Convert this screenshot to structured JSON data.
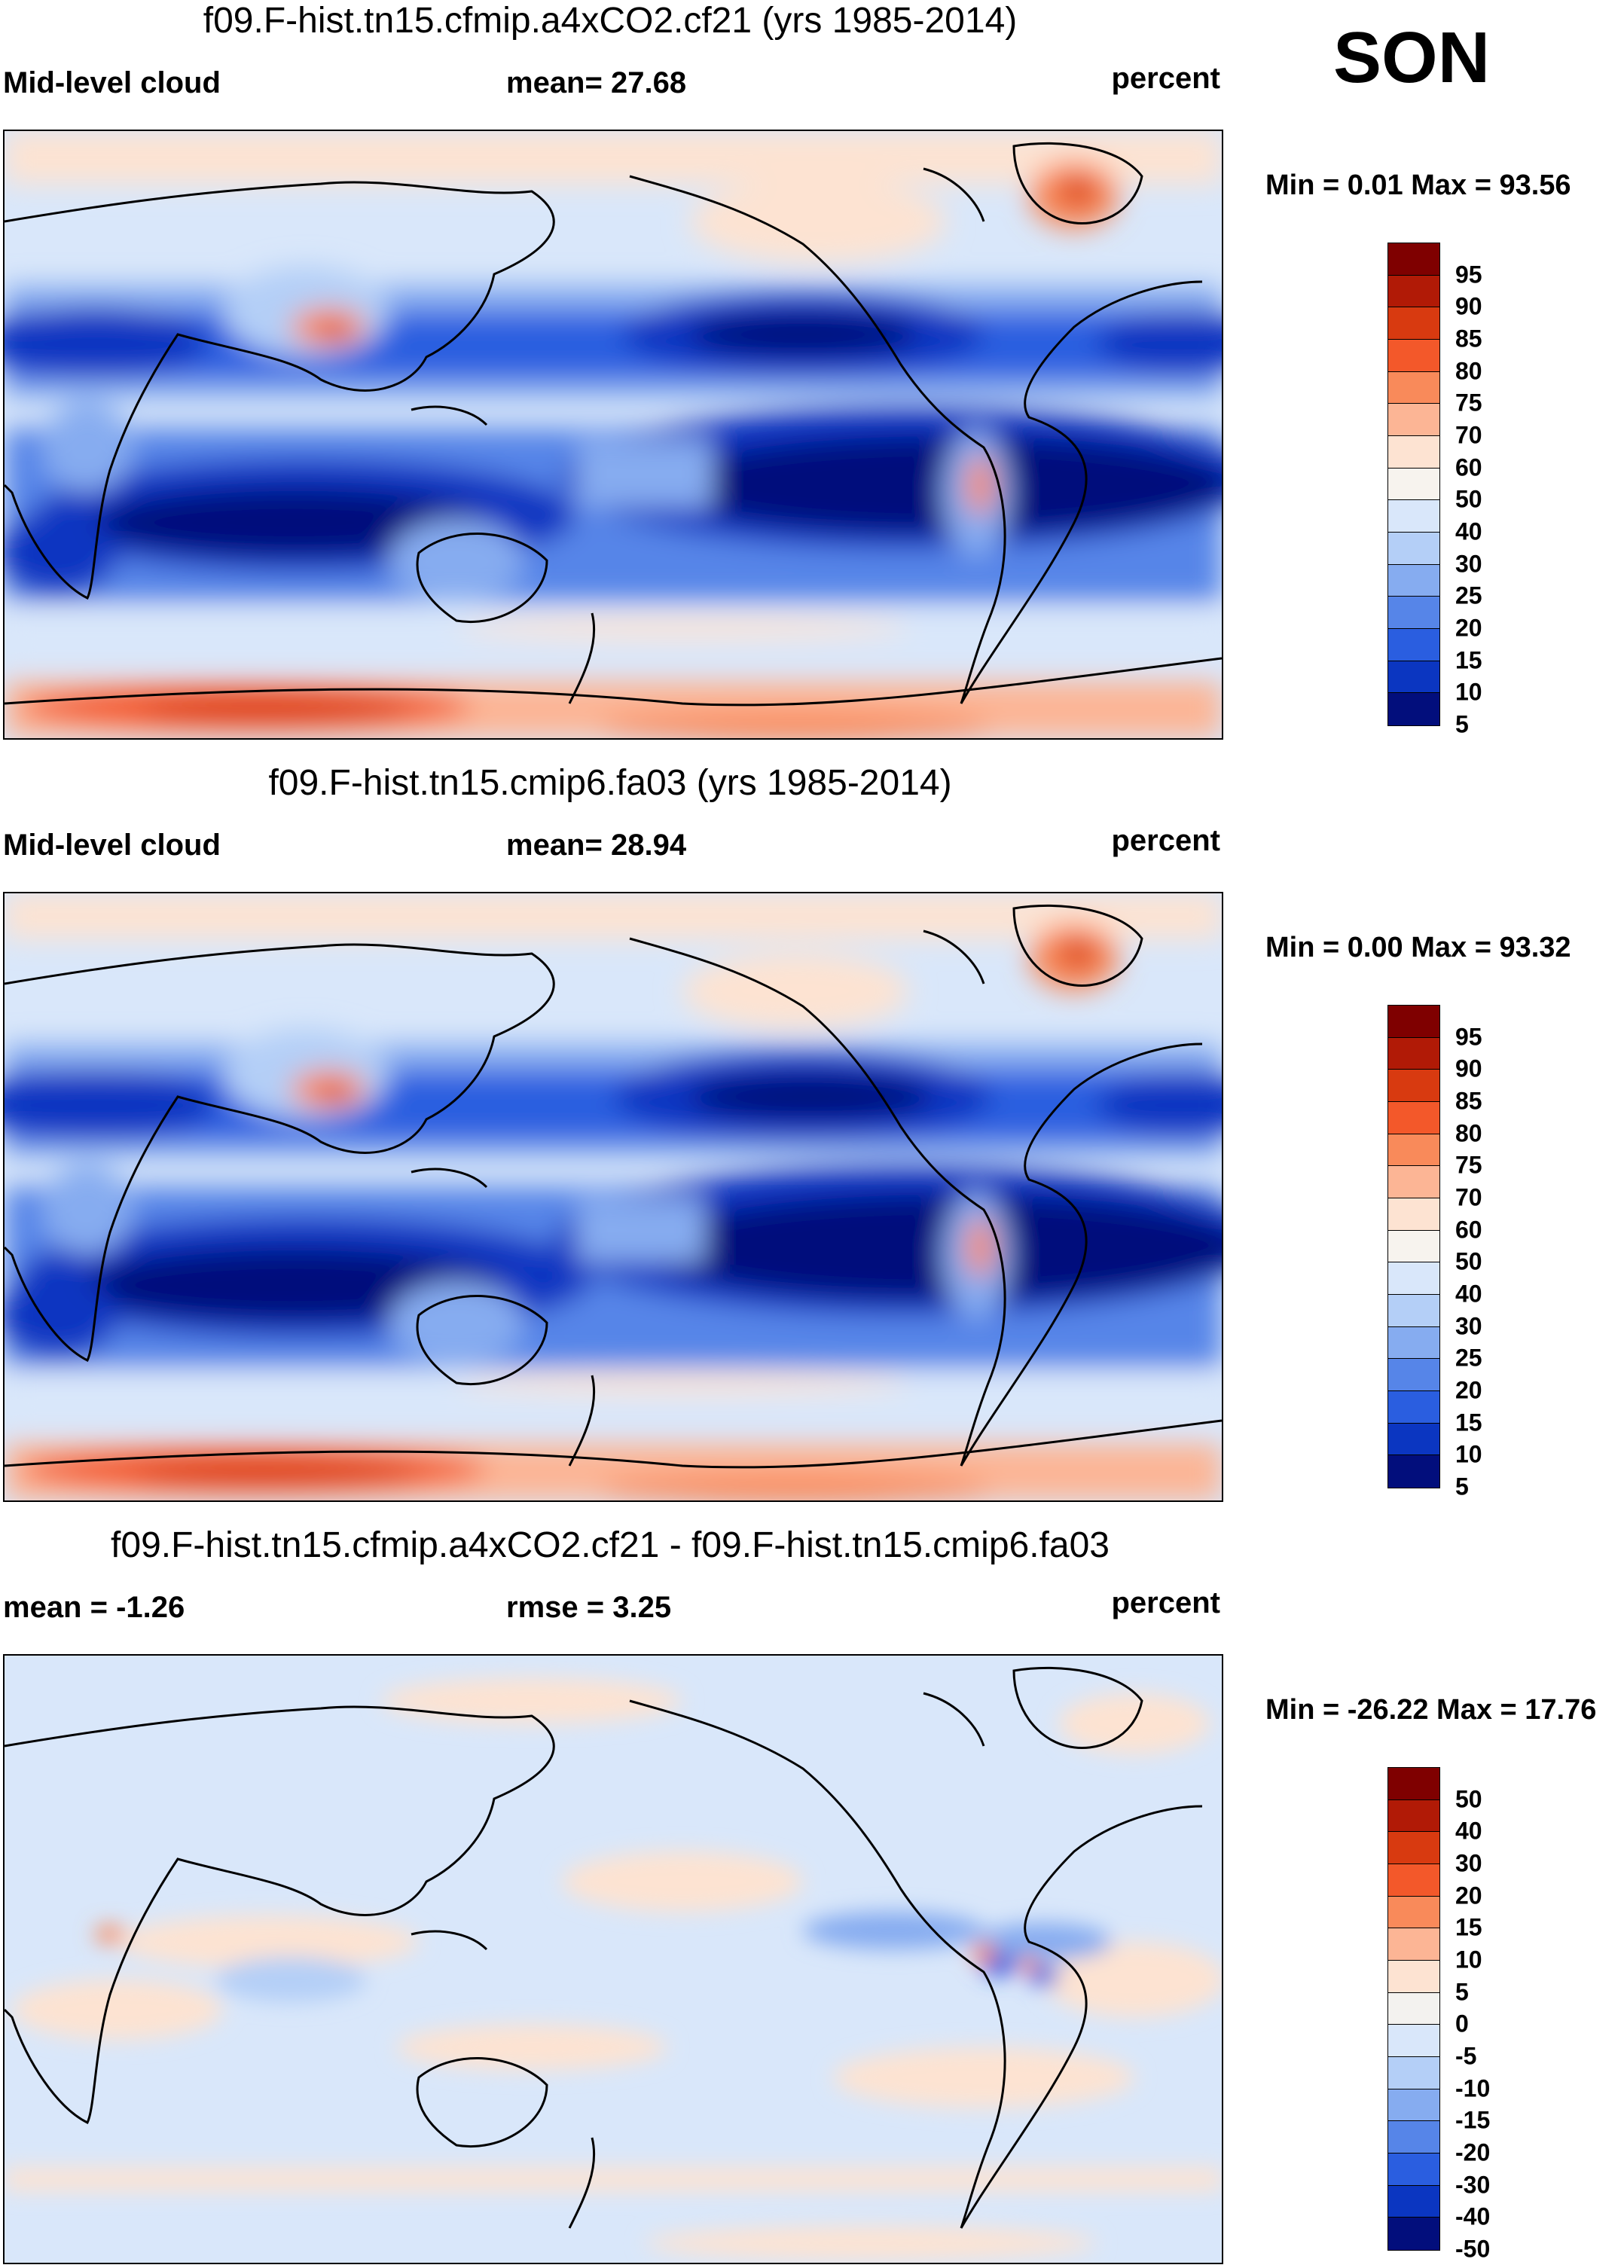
{
  "season": "SON",
  "units": "percent",
  "panels": [
    {
      "title": "f09.F-hist.tn15.cfmip.a4xCO2.cf21 (yrs 1985-2014)",
      "left_label": "Mid-level cloud",
      "mid_label": "mean=  27.68",
      "right_label": "percent",
      "minmax": "Min =   0.01 Max =  93.56",
      "colorbar_labels": [
        "95",
        "90",
        "85",
        "80",
        "75",
        "70",
        "60",
        "50",
        "40",
        "30",
        "25",
        "20",
        "15",
        "10",
        "5"
      ]
    },
    {
      "title": "f09.F-hist.tn15.cmip6.fa03 (yrs 1985-2014)",
      "left_label": "Mid-level cloud",
      "mid_label": "mean=  28.94",
      "right_label": "percent",
      "minmax": "Min =   0.00 Max =  93.32",
      "colorbar_labels": [
        "95",
        "90",
        "85",
        "80",
        "75",
        "70",
        "60",
        "50",
        "40",
        "30",
        "25",
        "20",
        "15",
        "10",
        "5"
      ]
    },
    {
      "title": "f09.F-hist.tn15.cfmip.a4xCO2.cf21 - f09.F-hist.tn15.cmip6.fa03",
      "left_label": "mean =  -1.26",
      "mid_label": "rmse =   3.25",
      "right_label": "percent",
      "minmax": "Min = -26.22 Max =  17.76",
      "colorbar_labels": [
        "50",
        "40",
        "30",
        "20",
        "15",
        "10",
        "5",
        "0",
        "-5",
        "-10",
        "-15",
        "-20",
        "-30",
        "-40",
        "-50"
      ]
    }
  ],
  "colors": {
    "abs_scale": [
      "#7f0000",
      "#b11a06",
      "#d83a10",
      "#f3582a",
      "#f98a5a",
      "#fcb595",
      "#fde3d2",
      "#f7f3ee",
      "#d9e7fa",
      "#b4cff7",
      "#86acf0",
      "#5685e8",
      "#2a5ee0",
      "#0b36c1",
      "#020e7c"
    ],
    "diff_scale": [
      "#7f0000",
      "#b11a06",
      "#d83a10",
      "#f3582a",
      "#f98a5a",
      "#fcb595",
      "#fde3d2",
      "#f3f2ef",
      "#d9e7fa",
      "#b4cff7",
      "#86acf0",
      "#5685e8",
      "#2a5ee0",
      "#0b36c1",
      "#020e7c"
    ],
    "land_outline": "#000000"
  },
  "chart_data": [
    {
      "type": "heatmap",
      "title": "f09.F-hist.tn15.cfmip.a4xCO2.cf21 (yrs 1985-2014)",
      "variable": "Mid-level cloud",
      "season": "SON",
      "units": "percent",
      "mean": 27.68,
      "min": 0.01,
      "max": 93.56,
      "contour_levels": [
        5,
        10,
        15,
        20,
        25,
        30,
        40,
        50,
        60,
        70,
        75,
        80,
        85,
        90,
        95
      ]
    },
    {
      "type": "heatmap",
      "title": "f09.F-hist.tn15.cmip6.fa03 (yrs 1985-2014)",
      "variable": "Mid-level cloud",
      "season": "SON",
      "units": "percent",
      "mean": 28.94,
      "min": 0.0,
      "max": 93.32,
      "contour_levels": [
        5,
        10,
        15,
        20,
        25,
        30,
        40,
        50,
        60,
        70,
        75,
        80,
        85,
        90,
        95
      ]
    },
    {
      "type": "heatmap",
      "title": "f09.F-hist.tn15.cfmip.a4xCO2.cf21 - f09.F-hist.tn15.cmip6.fa03",
      "variable": "Mid-level cloud difference",
      "season": "SON",
      "units": "percent",
      "mean": -1.26,
      "rmse": 3.25,
      "min": -26.22,
      "max": 17.76,
      "contour_levels": [
        -50,
        -40,
        -30,
        -20,
        -15,
        -10,
        -5,
        0,
        5,
        10,
        15,
        20,
        30,
        40,
        50
      ]
    }
  ]
}
